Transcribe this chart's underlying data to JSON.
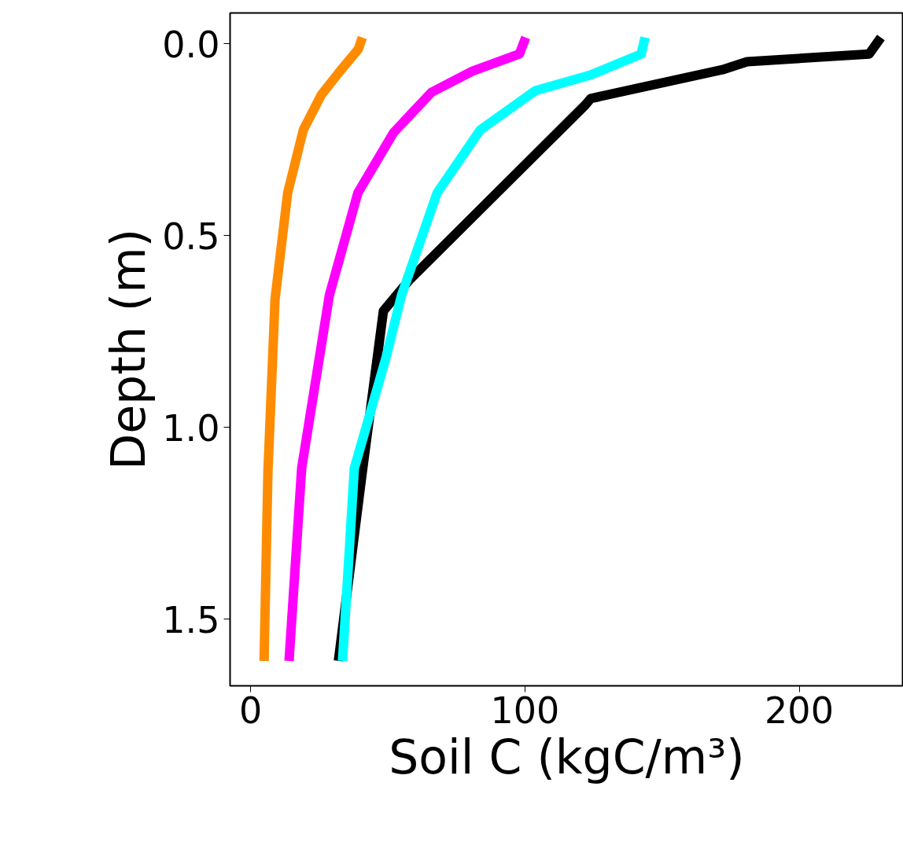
{
  "chart_data": {
    "type": "line",
    "xlabel": "Soil C (kgC/m³)",
    "ylabel": "Depth (m)",
    "xlim": [
      -7.5,
      238
    ],
    "ylim": [
      1.674,
      -0.08
    ],
    "xticks": [
      0,
      100,
      200
    ],
    "yticks": [
      {
        "value": 0,
        "label": "0.0"
      },
      0.5,
      {
        "value": 1,
        "label": "1.0"
      },
      1.5
    ],
    "grid": false,
    "marker": "none",
    "line_style": "solid",
    "series": [
      {
        "color": "#000000",
        "x": [
          229.8,
          225.5,
          181,
          172,
          124,
          122,
          58,
          48.4,
          40.7,
          32
        ],
        "values": [
          -0.016,
          0.027,
          0.047,
          0.068,
          0.143,
          0.16,
          0.615,
          0.697,
          1.117,
          1.609
        ]
      },
      {
        "color": "#00ffff",
        "x": [
          143.8,
          142.4,
          123.8,
          103.7,
          83.7,
          68,
          55,
          49.3,
          37.8,
          33.5
        ],
        "values": [
          -0.016,
          0.027,
          0.082,
          0.123,
          0.225,
          0.389,
          0.656,
          0.82,
          1.107,
          1.609
        ]
      },
      {
        "color": "#ff00ff",
        "x": [
          100.3,
          98,
          80.8,
          65.9,
          52.1,
          39.1,
          28.7,
          18.6,
          14
        ],
        "values": [
          -0.016,
          0.027,
          0.072,
          0.127,
          0.232,
          0.389,
          0.656,
          1.107,
          1.609
        ]
      },
      {
        "color": "#ff8c00",
        "x": [
          40.7,
          39.3,
          32.1,
          25.8,
          19.2,
          13.5,
          8.9,
          6.3,
          4.9
        ],
        "values": [
          -0.016,
          0.014,
          0.076,
          0.133,
          0.225,
          0.389,
          0.666,
          1.117,
          1.609
        ]
      }
    ]
  }
}
